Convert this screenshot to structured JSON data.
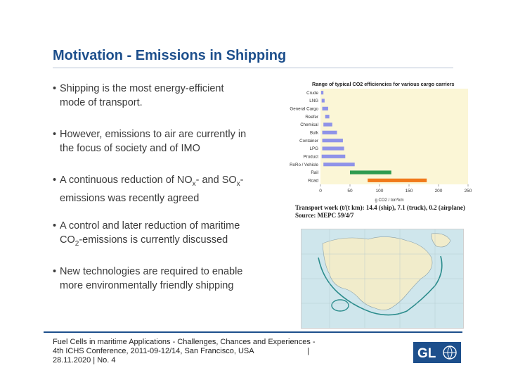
{
  "title": "Motivation - Emissions in Shipping",
  "bullets": [
    {
      "line1": "Shipping is the most energy-efficient",
      "line2": "mode of transport."
    },
    {
      "line1": "However, emissions to air are currently in",
      "line2": "the focus of society and of IMO"
    },
    {
      "line1_a": "A continuous reduction of NO",
      "sub1": "x",
      "line1_b": "- and SO",
      "sub2": "x",
      "line1_c": "-",
      "line2": "emissions was recently agreed"
    },
    {
      "line1": "A control and later reduction of maritime",
      "line2_a": "CO",
      "sub": "2",
      "line2_b": "-emissions is currently discussed"
    },
    {
      "line1": "New technologies are required to enable",
      "line2": "more environmentally friendly shipping"
    }
  ],
  "chart_data": {
    "type": "bar",
    "title": "Range of typical CO2 efficiencies for various cargo carriers",
    "xlabel": "g CO2 / ton*km",
    "xlim": [
      0,
      250
    ],
    "xticks": [
      0,
      50,
      100,
      150,
      200,
      250
    ],
    "categories": [
      "Crude",
      "LNG",
      "General Cargo",
      "Reefer",
      "Chemical",
      "Bulk",
      "Container",
      "LPG",
      "Product",
      "RoRo / Vehicle",
      "Rail",
      "Road"
    ],
    "ranges": [
      [
        1,
        5
      ],
      [
        2,
        7
      ],
      [
        3,
        13
      ],
      [
        8,
        15
      ],
      [
        5,
        20
      ],
      [
        3,
        28
      ],
      [
        3,
        38
      ],
      [
        3,
        40
      ],
      [
        2,
        42
      ],
      [
        5,
        58
      ],
      [
        50,
        120
      ],
      [
        80,
        180
      ]
    ],
    "colors": [
      "#8f93e8",
      "#8f93e8",
      "#8f93e8",
      "#8f93e8",
      "#8f93e8",
      "#8f93e8",
      "#8f93e8",
      "#8f93e8",
      "#8f93e8",
      "#8f93e8",
      "#2e9b4f",
      "#f07a1a"
    ],
    "background": "#fbf6d6"
  },
  "source": {
    "line1": "Transport work (t/(t km): 14.4 (ship), 7.1 (truck), 0.2 (airplane)",
    "line2": "Source: MEPC 59/4/7"
  },
  "footer": {
    "line1": "Fuel Cells in maritime Applications - Challenges, Chances and Experiences -",
    "line2": "4th ICHS Conference, 2011-09-12/14, San Francisco, USA",
    "pipe": "|",
    "line3": "28.11.2020 | No. 4"
  },
  "logo": {
    "text": "GL"
  }
}
